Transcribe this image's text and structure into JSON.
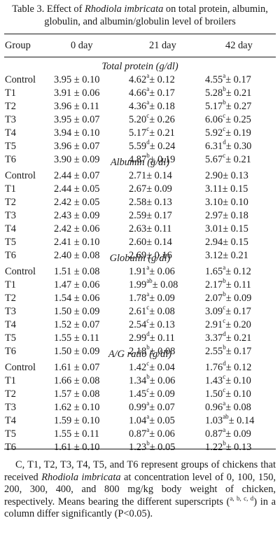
{
  "caption": {
    "prefix": "Table 3. Effect of ",
    "species": "Rhodiola imbricata",
    "suffix": " on total protein, albumin, globulin, and albumin/globulin level of broilers"
  },
  "headers": [
    "Group",
    "0 day",
    "21 day",
    "42 day"
  ],
  "sections": [
    {
      "title": "Total protein (g/dl)",
      "rows": [
        {
          "group": "Control",
          "d0": "3.95 ± 0.10",
          "d21": {
            "v": "4.62",
            "s": "a",
            "e": "± 0.12"
          },
          "d42": {
            "v": "4.55",
            "s": "a",
            "e": "± 0.17"
          }
        },
        {
          "group": "T1",
          "d0": "3.91 ± 0.06",
          "d21": {
            "v": "4.66",
            "s": "a",
            "e": "± 0.17"
          },
          "d42": {
            "v": "5.28",
            "s": "b",
            "e": "± 0.21"
          }
        },
        {
          "group": "T2",
          "d0": "3.96 ± 0.11",
          "d21": {
            "v": "4.36",
            "s": "a",
            "e": "± 0.18"
          },
          "d42": {
            "v": "5.17",
            "s": "b",
            "e": "± 0.27"
          }
        },
        {
          "group": "T3",
          "d0": "3.95 ± 0.07",
          "d21": {
            "v": "5.20",
            "s": "c",
            "e": "± 0.26"
          },
          "d42": {
            "v": "6.06",
            "s": "c",
            "e": "± 0.25"
          }
        },
        {
          "group": "T4",
          "d0": "3.94 ± 0.10",
          "d21": {
            "v": "5.17",
            "s": "c",
            "e": "± 0.21"
          },
          "d42": {
            "v": "5.92",
            "s": "c",
            "e": "± 0.19"
          }
        },
        {
          "group": "T5",
          "d0": "3.96 ± 0.07",
          "d21": {
            "v": "5.59",
            "s": "d",
            "e": "± 0.24"
          },
          "d42": {
            "v": "6.31",
            "s": "d",
            "e": "± 0.30"
          }
        },
        {
          "group": "T6",
          "d0": "3.90 ± 0.09",
          "d21": {
            "v": "4.87",
            "s": "b",
            "e": "± 0.19"
          },
          "d42": {
            "v": "5.67",
            "s": "c",
            "e": "± 0.21"
          }
        }
      ]
    },
    {
      "title": "Albumin (g/dl)",
      "rows": [
        {
          "group": "Control",
          "d0": "2.44 ± 0.07",
          "d21": {
            "v": "2.71",
            "s": "",
            "e": "± 0.14"
          },
          "d42": {
            "v": "2.90",
            "s": "",
            "e": "± 0.13"
          }
        },
        {
          "group": "T1",
          "d0": "2.44 ± 0.05",
          "d21": {
            "v": "2.67",
            "s": "",
            "e": "± 0.09"
          },
          "d42": {
            "v": "3.11",
            "s": "",
            "e": "± 0.15"
          }
        },
        {
          "group": "T2",
          "d0": "2.42 ± 0.05",
          "d21": {
            "v": "2.58",
            "s": "",
            "e": "± 0.13"
          },
          "d42": {
            "v": "3.10",
            "s": "",
            "e": "± 0.10"
          }
        },
        {
          "group": "T3",
          "d0": "2.43 ± 0.09",
          "d21": {
            "v": "2.59",
            "s": "",
            "e": "± 0.17"
          },
          "d42": {
            "v": "2.97",
            "s": "",
            "e": "± 0.18"
          }
        },
        {
          "group": "T4",
          "d0": "2.42 ± 0.06",
          "d21": {
            "v": "2.63",
            "s": "",
            "e": "± 0.11"
          },
          "d42": {
            "v": "3.01",
            "s": "",
            "e": "± 0.15"
          }
        },
        {
          "group": "T5",
          "d0": "2.41 ± 0.10",
          "d21": {
            "v": "2.60",
            "s": "",
            "e": "± 0.14"
          },
          "d42": {
            "v": "2.94",
            "s": "",
            "e": "± 0.15"
          }
        },
        {
          "group": "T6",
          "d0": "2.40 ± 0.08",
          "d21": {
            "v": "2.69",
            "s": "",
            "e": "± 0.16"
          },
          "d42": {
            "v": "3.12",
            "s": "",
            "e": "± 0.21"
          }
        }
      ]
    },
    {
      "title": "Globulin (g/dl)",
      "rows": [
        {
          "group": "Control",
          "d0": "1.51 ± 0.08",
          "d21": {
            "v": "1.91",
            "s": "a",
            "e": "± 0.06"
          },
          "d42": {
            "v": "1.65",
            "s": "a",
            "e": "± 0.12"
          }
        },
        {
          "group": "T1",
          "d0": "1.47 ± 0.06",
          "d21": {
            "v": "1.99",
            "s": "ab",
            "e": "± 0.08"
          },
          "d42": {
            "v": "2.17",
            "s": "b",
            "e": "± 0.11"
          }
        },
        {
          "group": "T2",
          "d0": "1.54 ± 0.06",
          "d21": {
            "v": "1.78",
            "s": "a",
            "e": "± 0.09"
          },
          "d42": {
            "v": "2.07",
            "s": "b",
            "e": "± 0.09"
          }
        },
        {
          "group": "T3",
          "d0": "1.50 ± 0.09",
          "d21": {
            "v": "2.61",
            "s": "c",
            "e": "± 0.08"
          },
          "d42": {
            "v": "3.09",
            "s": "c",
            "e": "± 0.17"
          }
        },
        {
          "group": "T4",
          "d0": "1.52 ± 0.07",
          "d21": {
            "v": "2.54",
            "s": "c",
            "e": "± 0.13"
          },
          "d42": {
            "v": "2.91",
            "s": "c",
            "e": "± 0.20"
          }
        },
        {
          "group": "T5",
          "d0": "1.55 ± 0.11",
          "d21": {
            "v": "2.99",
            "s": "d",
            "e": "± 0.11"
          },
          "d42": {
            "v": "3.37",
            "s": "d",
            "e": "± 0.21"
          }
        },
        {
          "group": "T6",
          "d0": "1.50 ± 0.09",
          "d21": {
            "v": "2.18",
            "s": "b",
            "e": "± 0.08"
          },
          "d42": {
            "v": "2.55",
            "s": "b",
            "e": "± 0.17"
          }
        }
      ]
    },
    {
      "title": "A/G ratio (g/dl)",
      "rows": [
        {
          "group": "Control",
          "d0": "1.61 ± 0.07",
          "d21": {
            "v": "1.42",
            "s": "c",
            "e": "± 0.04"
          },
          "d42": {
            "v": "1.76",
            "s": "d",
            "e": "± 0.12"
          }
        },
        {
          "group": "T1",
          "d0": "1.66 ± 0.08",
          "d21": {
            "v": "1.34",
            "s": "b",
            "e": "± 0.06"
          },
          "d42": {
            "v": "1.43",
            "s": "c",
            "e": "± 0.10"
          }
        },
        {
          "group": "T2",
          "d0": "1.57 ± 0.08",
          "d21": {
            "v": "1.45",
            "s": "c",
            "e": "± 0.09"
          },
          "d42": {
            "v": "1.50",
            "s": "c",
            "e": "± 0.10"
          }
        },
        {
          "group": "T3",
          "d0": "1.62 ± 0.10",
          "d21": {
            "v": "0.99",
            "s": "a",
            "e": "± 0.07"
          },
          "d42": {
            "v": "0.96",
            "s": "a",
            "e": "± 0.08"
          }
        },
        {
          "group": "T4",
          "d0": "1.59 ± 0.10",
          "d21": {
            "v": "1.04",
            "s": "a",
            "e": "± 0.05"
          },
          "d42": {
            "v": "1.03",
            "s": "ab",
            "e": "± 0.14"
          }
        },
        {
          "group": "T5",
          "d0": "1.55 ± 0.11",
          "d21": {
            "v": "0.87",
            "s": "a",
            "e": "± 0.06"
          },
          "d42": {
            "v": "0.87",
            "s": "a",
            "e": "± 0.09"
          }
        },
        {
          "group": "T6",
          "d0": "1.61 ± 0.10",
          "d21": {
            "v": "1.23",
            "s": "b",
            "e": "± 0.05"
          },
          "d42": {
            "v": "1.22",
            "s": "b",
            "e": "± 0.13"
          }
        }
      ]
    }
  ],
  "footnote": {
    "part1": "C, T1, T2, T3, T4, T5, and T6 represent groups of chickens that received ",
    "species": "Rhodiola imbricata",
    "part2": " at concentration level of 0, 100, 150, 200, 300, 400, and 800 mg/kg body weight of chicken, respectively. Means bearing the different superscripts (",
    "sup": "a, b, c, d",
    "part3": ") in a column differ significantly (P<0.05)."
  }
}
